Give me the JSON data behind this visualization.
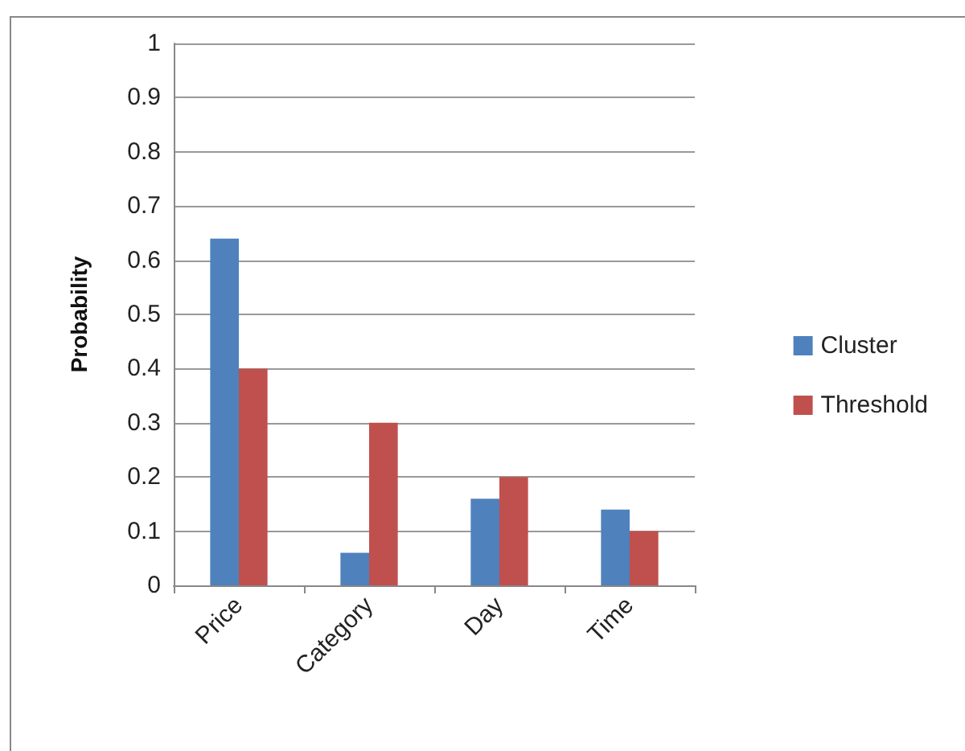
{
  "chart_data": {
    "type": "bar",
    "ylabel": "Probability",
    "categories": [
      "Price",
      "Category",
      "Day",
      "Time"
    ],
    "series": [
      {
        "name": "Cluster",
        "color": "#4f81bd",
        "values": [
          0.64,
          0.06,
          0.16,
          0.14
        ]
      },
      {
        "name": "Threshold",
        "color": "#c0504d",
        "values": [
          0.4,
          0.3,
          0.2,
          0.1
        ]
      }
    ],
    "ylim": [
      0,
      1
    ],
    "yticks": [
      0,
      0.1,
      0.2,
      0.3,
      0.4,
      0.5,
      0.6,
      0.7,
      0.8,
      0.9,
      1
    ],
    "grid": "y",
    "legend": "right"
  }
}
